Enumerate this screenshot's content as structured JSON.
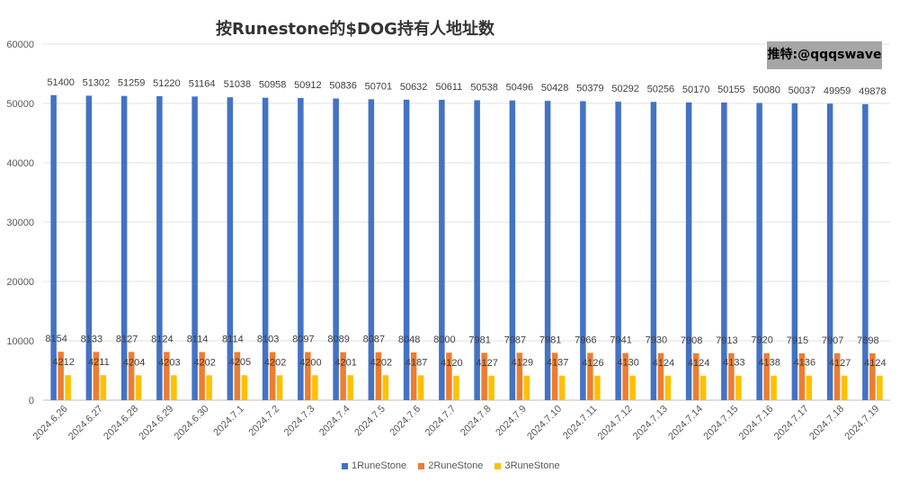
{
  "chart_data": {
    "type": "bar",
    "title": "按Runestone的$DOG持有人地址数",
    "xlabel": "",
    "ylabel": "",
    "ylim": [
      0,
      60000
    ],
    "yticks": [
      0,
      10000,
      20000,
      30000,
      40000,
      50000,
      60000
    ],
    "grid": true,
    "legend": "bottom",
    "categories": [
      "2024.6.26",
      "2024.6.27",
      "2024.6.28",
      "2024.6.29",
      "2024.6.30",
      "2024.7.1",
      "2024.7.2",
      "2024.7.3",
      "2024.7.4",
      "2024.7.5",
      "2024.7.6",
      "2024.7.7",
      "2024.7.8",
      "2024.7.9",
      "2024.7.10",
      "2024.7.11",
      "2024.7.12",
      "2024.7.13",
      "2024.7.14",
      "2024.7.15",
      "2024.7.16",
      "2024.7.17",
      "2024.7.18",
      "2024.7.19"
    ],
    "series": [
      {
        "name": "1RuneStone",
        "color": "#4472c4",
        "values": [
          51400,
          51302,
          51259,
          51220,
          51164,
          51038,
          50958,
          50912,
          50836,
          50701,
          50632,
          50611,
          50538,
          50496,
          50428,
          50379,
          50292,
          50256,
          50170,
          50155,
          50080,
          50037,
          49959,
          49878
        ]
      },
      {
        "name": "2RuneStone",
        "color": "#ed7d31",
        "values": [
          8154,
          8133,
          8127,
          8124,
          8114,
          8114,
          8103,
          8097,
          8089,
          8087,
          8048,
          8000,
          7981,
          7987,
          7981,
          7966,
          7941,
          7930,
          7908,
          7913,
          7920,
          7915,
          7907,
          7898
        ]
      },
      {
        "name": "3RuneStone",
        "color": "#ffc000",
        "values": [
          4212,
          4211,
          4204,
          4203,
          4202,
          4205,
          4202,
          4200,
          4201,
          4202,
          4187,
          4120,
          4127,
          4129,
          4137,
          4126,
          4130,
          4124,
          4124,
          4133,
          4138,
          4136,
          4127,
          4124
        ]
      }
    ]
  },
  "badge": "推特:@qqqswave"
}
